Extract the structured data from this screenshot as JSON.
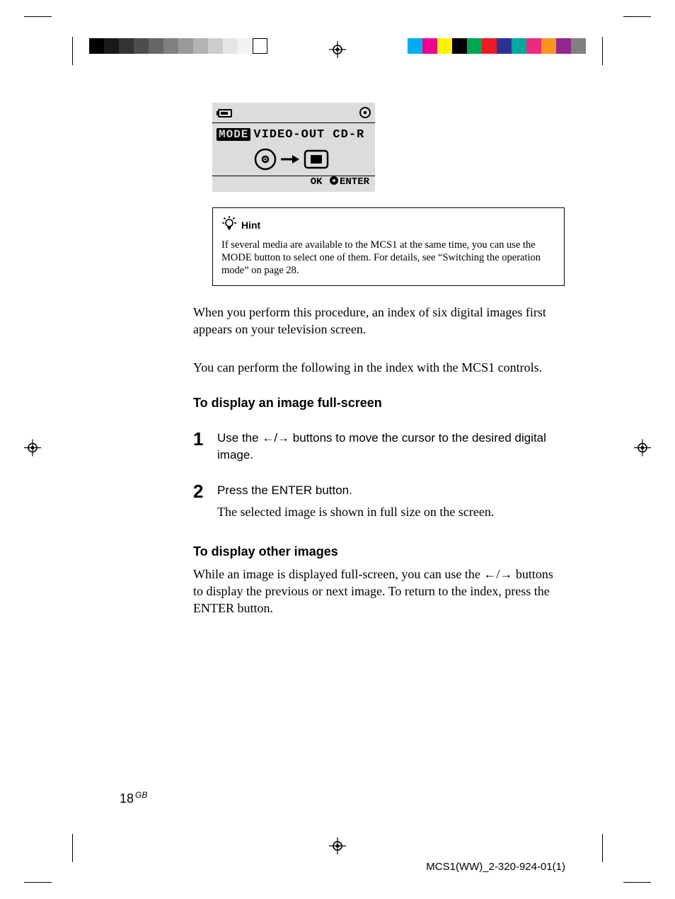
{
  "print_marks": {
    "gray_swatches": [
      "#000000",
      "#1a1a1a",
      "#333333",
      "#4d4d4d",
      "#666666",
      "#808080",
      "#999999",
      "#b3b3b3",
      "#cccccc",
      "#e5e5e5",
      "#f2f2f2",
      "#ffffff"
    ],
    "color_swatches": [
      "#00aeef",
      "#ec008c",
      "#fff200",
      "#000000",
      "#00a651",
      "#ed1c24",
      "#2e3192",
      "#00a99d",
      "#ee2a7b",
      "#f7941d",
      "#92278f",
      "#808080"
    ]
  },
  "lcd": {
    "background": "#dcdcdc",
    "mode_label": "MODE",
    "text_after_mode": "VIDEO-OUT CD-R",
    "ok_label": "OK",
    "enter_label": "ENTER"
  },
  "hint": {
    "title": "Hint",
    "text": "If several media are available to the MCS1 at the same time, you can use the MODE button to select one of them. For details, see “Switching the operation mode” on page 28."
  },
  "paragraph1": "When you perform this procedure, an index of six digital images first appears on your television screen.",
  "paragraph2": "You can perform the following in the index with the MCS1 controls.",
  "section1_heading": "To display an image full-screen",
  "step1": {
    "num": "1",
    "text_before_arrows": "Use the ",
    "arrow_left": "←",
    "arrow_sep": "/",
    "arrow_right": "→",
    "text_after_arrows": " buttons to move the cursor to the desired digital image."
  },
  "step2": {
    "num": "2",
    "text": "Press the ENTER button.",
    "subtext": "The selected image is shown in full size on the screen."
  },
  "section2_heading": "To display other images",
  "paragraph3_before": "While an image is displayed full-screen, you can use the ",
  "paragraph3_arrow_left": "←",
  "paragraph3_arrow_sep": "/",
  "paragraph3_arrow_right": "→",
  "paragraph3_after": " buttons to display the previous or next image. To return to the index, press the ENTER button.",
  "footer": {
    "page_number": "18",
    "lang": "GB",
    "doc_id": "MCS1(WW)_2-320-924-01(1)"
  }
}
